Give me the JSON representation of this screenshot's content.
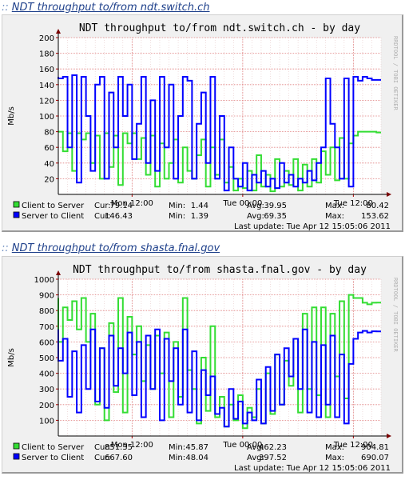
{
  "sections": [
    {
      "header_link": "NDT throughput to/from ndt.switch.ch",
      "chart": {
        "title": "NDT throughput to/from ndt.switch.ch - by day",
        "ylabel": "Mb/s",
        "watermark": "RRDTOOL / TOBI OETIKER",
        "last_update": "Last update: Tue Apr 12 15:05:06 2011"
      }
    },
    {
      "header_link": "NDT throughput to/from shasta.fnal.gov",
      "chart": {
        "title": "NDT throughput to/from shasta.fnal.gov - by day",
        "ylabel": "Mb/s",
        "watermark": "RRDTOOL / TOBI OETIKER",
        "last_update": "Last update: Tue Apr 12 15:05:06 2011"
      }
    }
  ],
  "chart_data": [
    {
      "type": "line",
      "title": "NDT throughput to/from ndt.switch.ch - by day",
      "ylabel": "Mb/s",
      "ylim": [
        0,
        200
      ],
      "yticks": [
        20,
        40,
        60,
        80,
        100,
        120,
        140,
        160,
        180,
        200
      ],
      "x_ticks": [
        "Mon 12:00",
        "Tue 00:00",
        "Tue 12:00"
      ],
      "x_tick_hours": [
        -27,
        -15,
        -3
      ],
      "xlim": [
        -35,
        0
      ],
      "grid": true,
      "legend_stats_headers": [
        "Cur:",
        "Min:",
        "Avg:",
        "Max:"
      ],
      "series": [
        {
          "name": "Client to Server",
          "color": "#33dd33",
          "stats": [
            "79.14",
            "1.44",
            "39.95",
            "80.42"
          ],
          "x": [
            -35,
            -34.5,
            -34,
            -33.5,
            -33,
            -32.5,
            -32,
            -31.5,
            -31,
            -30.5,
            -30,
            -29.5,
            -29,
            -28.5,
            -28,
            -27.5,
            -27,
            -26.5,
            -26,
            -25.5,
            -25,
            -24.5,
            -24,
            -23.5,
            -23,
            -22.5,
            -22,
            -21.5,
            -21,
            -20.5,
            -20,
            -19.5,
            -19,
            -18.5,
            -18,
            -17.5,
            -17,
            -16.5,
            -16,
            -15.5,
            -15,
            -14.5,
            -14,
            -13.5,
            -13,
            -12.5,
            -12,
            -11.5,
            -11,
            -10.5,
            -10,
            -9.5,
            -9,
            -8.5,
            -8,
            -7.5,
            -7,
            -6.5,
            -6,
            -5.5,
            -5,
            -4.5,
            -4,
            -3.5,
            -3,
            -2.5,
            -2,
            -1.5,
            -1,
            -0.5,
            0
          ],
          "values": [
            80,
            80,
            55,
            78,
            30,
            78,
            70,
            78,
            40,
            75,
            20,
            78,
            35,
            75,
            12,
            78,
            65,
            78,
            45,
            72,
            25,
            75,
            10,
            65,
            20,
            40,
            70,
            15,
            60,
            30,
            20,
            50,
            70,
            10,
            60,
            25,
            70,
            15,
            35,
            5,
            20,
            8,
            30,
            5,
            50,
            10,
            25,
            4,
            45,
            10,
            30,
            12,
            45,
            5,
            38,
            10,
            45,
            15,
            55,
            25,
            60,
            18,
            72,
            20,
            65,
            75,
            80,
            80,
            80,
            80,
            79
          ],
          "min": 1.44,
          "avg": 39.95,
          "max": 80.42
        },
        {
          "name": "Server to Client",
          "color": "#0000ff",
          "stats": [
            "146.43",
            "1.39",
            "69.35",
            "153.62"
          ],
          "x": [
            -35,
            -34.5,
            -34,
            -33.5,
            -33,
            -32.5,
            -32,
            -31.5,
            -31,
            -30.5,
            -30,
            -29.5,
            -29,
            -28.5,
            -28,
            -27.5,
            -27,
            -26.5,
            -26,
            -25.5,
            -25,
            -24.5,
            -24,
            -23.5,
            -23,
            -22.5,
            -22,
            -21.5,
            -21,
            -20.5,
            -20,
            -19.5,
            -19,
            -18.5,
            -18,
            -17.5,
            -17,
            -16.5,
            -16,
            -15.5,
            -15,
            -14.5,
            -14,
            -13.5,
            -13,
            -12.5,
            -12,
            -11.5,
            -11,
            -10.5,
            -10,
            -9.5,
            -9,
            -8.5,
            -8,
            -7.5,
            -7,
            -6.5,
            -6,
            -5.5,
            -5,
            -4.5,
            -4,
            -3.5,
            -3,
            -2.5,
            -2,
            -1.5,
            -1,
            -0.5,
            0
          ],
          "values": [
            150,
            148,
            150,
            60,
            152,
            15,
            150,
            100,
            30,
            140,
            150,
            20,
            130,
            60,
            150,
            100,
            140,
            45,
            90,
            150,
            40,
            120,
            30,
            150,
            60,
            140,
            20,
            100,
            150,
            145,
            20,
            90,
            130,
            40,
            150,
            20,
            100,
            5,
            60,
            20,
            10,
            40,
            5,
            25,
            15,
            30,
            10,
            20,
            8,
            40,
            15,
            25,
            10,
            20,
            15,
            30,
            18,
            40,
            60,
            148,
            90,
            60,
            20,
            148,
            10,
            150,
            145,
            150,
            148,
            146,
            146
          ],
          "min": 1.39,
          "avg": 69.35,
          "max": 153.62
        }
      ]
    },
    {
      "type": "line",
      "title": "NDT throughput to/from shasta.fnal.gov - by day",
      "ylabel": "Mb/s",
      "ylim": [
        0,
        1000
      ],
      "yticks": [
        100,
        200,
        300,
        400,
        500,
        600,
        700,
        800,
        900,
        1000
      ],
      "x_ticks": [
        "Mon 12:00",
        "Tue 00:00",
        "Tue 12:00"
      ],
      "x_tick_hours": [
        -27,
        -15,
        -3
      ],
      "xlim": [
        -35,
        0
      ],
      "grid": true,
      "legend_stats_headers": [
        "Cur:",
        "Min:",
        "Avg:",
        "Max:"
      ],
      "series": [
        {
          "name": "Client to Server",
          "color": "#33dd33",
          "stats": [
            "851.35",
            "45.87",
            "462.23",
            "904.81"
          ],
          "x": [
            -35,
            -34.5,
            -34,
            -33.5,
            -33,
            -32.5,
            -32,
            -31.5,
            -31,
            -30.5,
            -30,
            -29.5,
            -29,
            -28.5,
            -28,
            -27.5,
            -27,
            -26.5,
            -26,
            -25.5,
            -25,
            -24.5,
            -24,
            -23.5,
            -23,
            -22.5,
            -22,
            -21.5,
            -21,
            -20.5,
            -20,
            -19.5,
            -19,
            -18.5,
            -18,
            -17.5,
            -17,
            -16.5,
            -16,
            -15.5,
            -15,
            -14.5,
            -14,
            -13.5,
            -13,
            -12.5,
            -12,
            -11.5,
            -11,
            -10.5,
            -10,
            -9.5,
            -9,
            -8.5,
            -8,
            -7.5,
            -7,
            -6.5,
            -6,
            -5.5,
            -5,
            -4.5,
            -4,
            -3.5,
            -3,
            -2.5,
            -2,
            -1.5,
            -1,
            -0.5,
            0
          ],
          "values": [
            880,
            600,
            820,
            740,
            860,
            680,
            880,
            600,
            780,
            200,
            560,
            100,
            720,
            280,
            880,
            150,
            760,
            520,
            700,
            350,
            580,
            300,
            640,
            400,
            660,
            120,
            600,
            250,
            880,
            420,
            300,
            80,
            500,
            160,
            700,
            120,
            250,
            60,
            200,
            100,
            260,
            50,
            180,
            120,
            300,
            80,
            400,
            140,
            520,
            200,
            480,
            320,
            620,
            150,
            780,
            300,
            820,
            260,
            820,
            120,
            780,
            380,
            860,
            240,
            900,
            880,
            880,
            850,
            840,
            850,
            851
          ],
          "min": 45.87,
          "avg": 462.23,
          "max": 904.81
        },
        {
          "name": "Server to Client",
          "color": "#0000ff",
          "stats": [
            "667.60",
            "48.04",
            "397.52",
            "690.07"
          ],
          "x": [
            -35,
            -34.5,
            -34,
            -33.5,
            -33,
            -32.5,
            -32,
            -31.5,
            -31,
            -30.5,
            -30,
            -29.5,
            -29,
            -28.5,
            -28,
            -27.5,
            -27,
            -26.5,
            -26,
            -25.5,
            -25,
            -24.5,
            -24,
            -23.5,
            -23,
            -22.5,
            -22,
            -21.5,
            -21,
            -20.5,
            -20,
            -19.5,
            -19,
            -18.5,
            -18,
            -17.5,
            -17,
            -16.5,
            -16,
            -15.5,
            -15,
            -14.5,
            -14,
            -13.5,
            -13,
            -12.5,
            -12,
            -11.5,
            -11,
            -10.5,
            -10,
            -9.5,
            -9,
            -8.5,
            -8,
            -7.5,
            -7,
            -6.5,
            -6,
            -5.5,
            -5,
            -4.5,
            -4,
            -3.5,
            -3,
            -2.5,
            -2,
            -1.5,
            -1,
            -0.5,
            0
          ],
          "values": [
            680,
            480,
            620,
            250,
            540,
            150,
            580,
            300,
            680,
            220,
            560,
            180,
            640,
            320,
            560,
            400,
            660,
            260,
            600,
            120,
            640,
            300,
            680,
            100,
            620,
            350,
            560,
            200,
            680,
            150,
            540,
            100,
            420,
            260,
            380,
            140,
            180,
            60,
            300,
            110,
            220,
            80,
            150,
            100,
            360,
            80,
            440,
            160,
            520,
            200,
            560,
            380,
            620,
            300,
            680,
            150,
            600,
            120,
            580,
            200,
            640,
            120,
            520,
            80,
            460,
            620,
            660,
            670,
            660,
            668,
            667
          ],
          "min": 48.04,
          "avg": 397.52,
          "max": 690.07
        }
      ]
    }
  ]
}
